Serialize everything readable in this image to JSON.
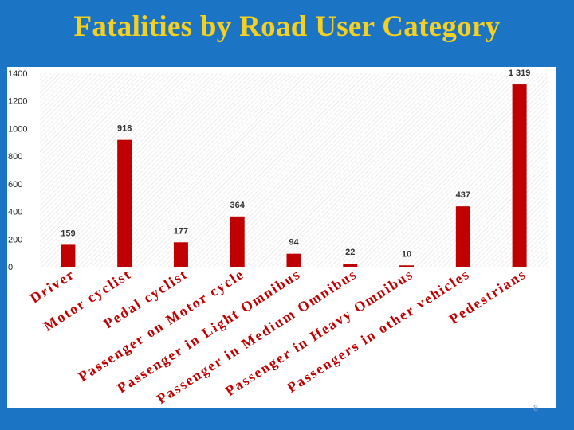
{
  "slide": {
    "title": "Fatalities by Road User Category",
    "page_number": "8"
  },
  "colors": {
    "background": "#1b75c4",
    "title": "#f5d020",
    "bar": "#c00000",
    "panel": "#ffffff"
  },
  "chart_data": {
    "type": "bar",
    "title": "",
    "xlabel": "",
    "ylabel": "",
    "ylim": [
      0,
      1400
    ],
    "yticks": [
      0,
      200,
      400,
      600,
      800,
      1000,
      1200,
      1400
    ],
    "grid": false,
    "background_pattern": "diagonal-hatch",
    "categories": [
      "Driver",
      "Motor cyclist",
      "Pedal cyclist",
      "Passenger on Motor cycle",
      "Passenger in Light Omnibus",
      "Passenger in Medium Omnibus",
      "Passenger in Heavy Omnibus",
      "Passengers in other vehicles",
      "Pedestrians"
    ],
    "values": [
      159,
      918,
      177,
      364,
      94,
      22,
      10,
      437,
      1319
    ],
    "data_labels": [
      "159",
      "918",
      "177",
      "364",
      "94",
      "22",
      "10",
      "437",
      "1 319"
    ]
  }
}
